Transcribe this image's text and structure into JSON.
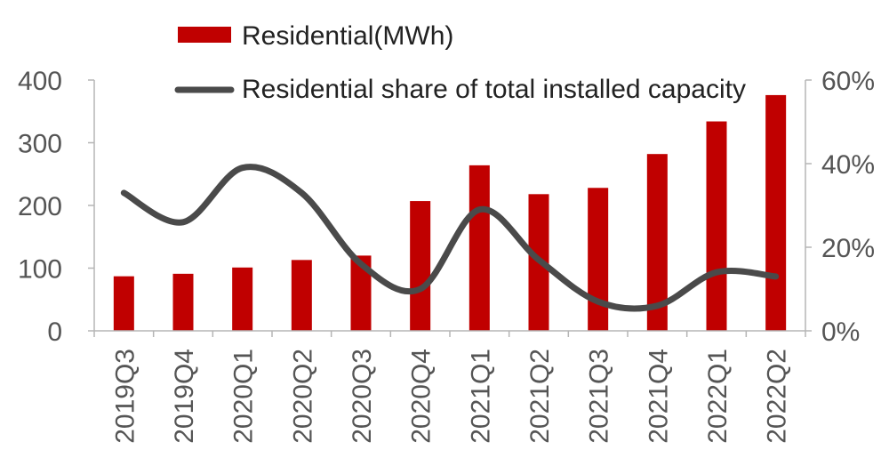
{
  "chart_data": {
    "type": "bar",
    "categories": [
      "2019Q3",
      "2019Q4",
      "2020Q1",
      "2020Q2",
      "2020Q3",
      "2020Q4",
      "2021Q1",
      "2021Q2",
      "2021Q3",
      "2021Q4",
      "2022Q1",
      "2022Q2"
    ],
    "series": [
      {
        "name": "Residential(MWh)",
        "type": "bar",
        "axis": "left",
        "color": "#c00000",
        "values": [
          87,
          91,
          101,
          113,
          120,
          207,
          264,
          218,
          228,
          282,
          334,
          376
        ]
      },
      {
        "name": "Residential share of total installed capacity",
        "type": "line",
        "axis": "right",
        "color": "#4a4a4a",
        "smooth": true,
        "values": [
          0.33,
          0.26,
          0.39,
          0.33,
          0.16,
          0.1,
          0.29,
          0.17,
          0.07,
          0.06,
          0.14,
          0.13
        ]
      }
    ],
    "y_left": {
      "ylim": [
        0,
        400
      ],
      "ticks": [
        "0",
        "100",
        "200",
        "300",
        "400"
      ]
    },
    "y_right": {
      "ylim": [
        0,
        0.6
      ],
      "ticks": [
        "0%",
        "20%",
        "40%",
        "60%"
      ]
    },
    "legend_position": "top",
    "grid": false
  }
}
